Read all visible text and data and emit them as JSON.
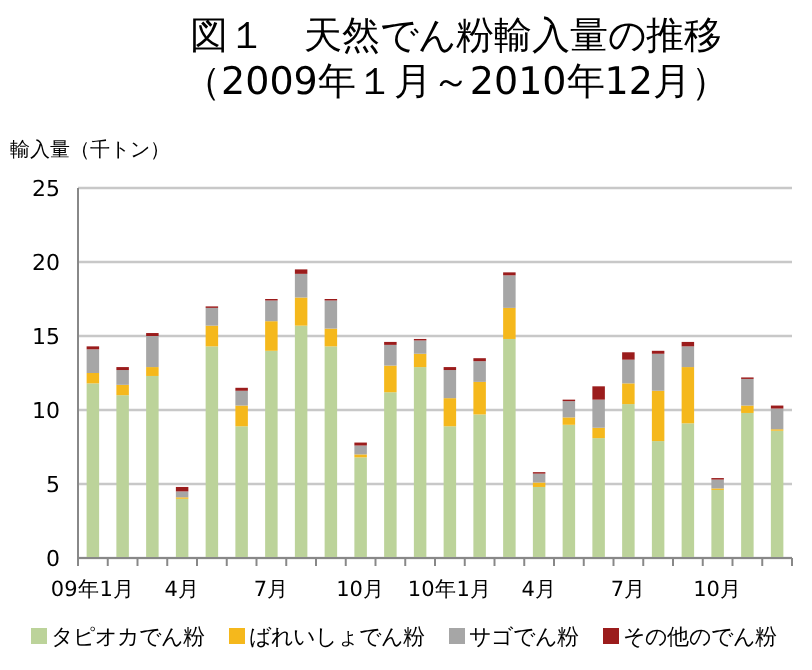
{
  "chart_data": {
    "type": "bar",
    "stacked": true,
    "title": "図１　天然でん粉輸入量の推移",
    "subtitle": "（2009年１月～2010年12月）",
    "ylabel": "輸入量（千トン）",
    "categories": [
      "09年1月",
      null,
      null,
      "4月",
      null,
      null,
      "7月",
      null,
      null,
      "10月",
      null,
      null,
      "10年1月",
      null,
      null,
      "4月",
      null,
      null,
      "7月",
      null,
      null,
      "10月",
      null,
      null
    ],
    "ylim": [
      0,
      25
    ],
    "yticks": [
      0,
      5,
      10,
      15,
      20,
      25
    ],
    "grid": "y",
    "legend": "bottom",
    "series": [
      {
        "name": "タピオカでん粉",
        "color": "#bcd39a",
        "values": [
          11.8,
          11.0,
          12.3,
          4.0,
          14.3,
          8.9,
          14.0,
          15.7,
          14.3,
          6.8,
          11.2,
          12.9,
          8.9,
          9.7,
          14.8,
          4.8,
          9.0,
          8.1,
          10.4,
          7.9,
          9.1,
          4.6,
          9.8,
          8.6
        ]
      },
      {
        "name": "ばれいしょでん粉",
        "color": "#f5b81c",
        "values": [
          0.7,
          0.7,
          0.6,
          0.1,
          1.4,
          1.4,
          2.0,
          1.9,
          1.2,
          0.2,
          1.8,
          0.9,
          1.9,
          2.2,
          2.1,
          0.3,
          0.5,
          0.7,
          1.4,
          3.4,
          3.8,
          0.1,
          0.5,
          0.1
        ]
      },
      {
        "name": "サゴでん粉",
        "color": "#a6a6a6",
        "values": [
          1.6,
          1.0,
          2.1,
          0.4,
          1.2,
          1.0,
          1.4,
          1.6,
          1.9,
          0.6,
          1.4,
          0.9,
          1.9,
          1.4,
          2.2,
          0.6,
          1.1,
          1.9,
          1.6,
          2.5,
          1.4,
          0.6,
          1.8,
          1.4
        ]
      },
      {
        "name": "その他のでん粉",
        "color": "#9b1c1c",
        "values": [
          0.2,
          0.2,
          0.2,
          0.3,
          0.1,
          0.2,
          0.1,
          0.3,
          0.1,
          0.2,
          0.2,
          0.1,
          0.2,
          0.2,
          0.2,
          0.1,
          0.1,
          0.9,
          0.5,
          0.2,
          0.3,
          0.1,
          0.1,
          0.2
        ]
      }
    ]
  }
}
